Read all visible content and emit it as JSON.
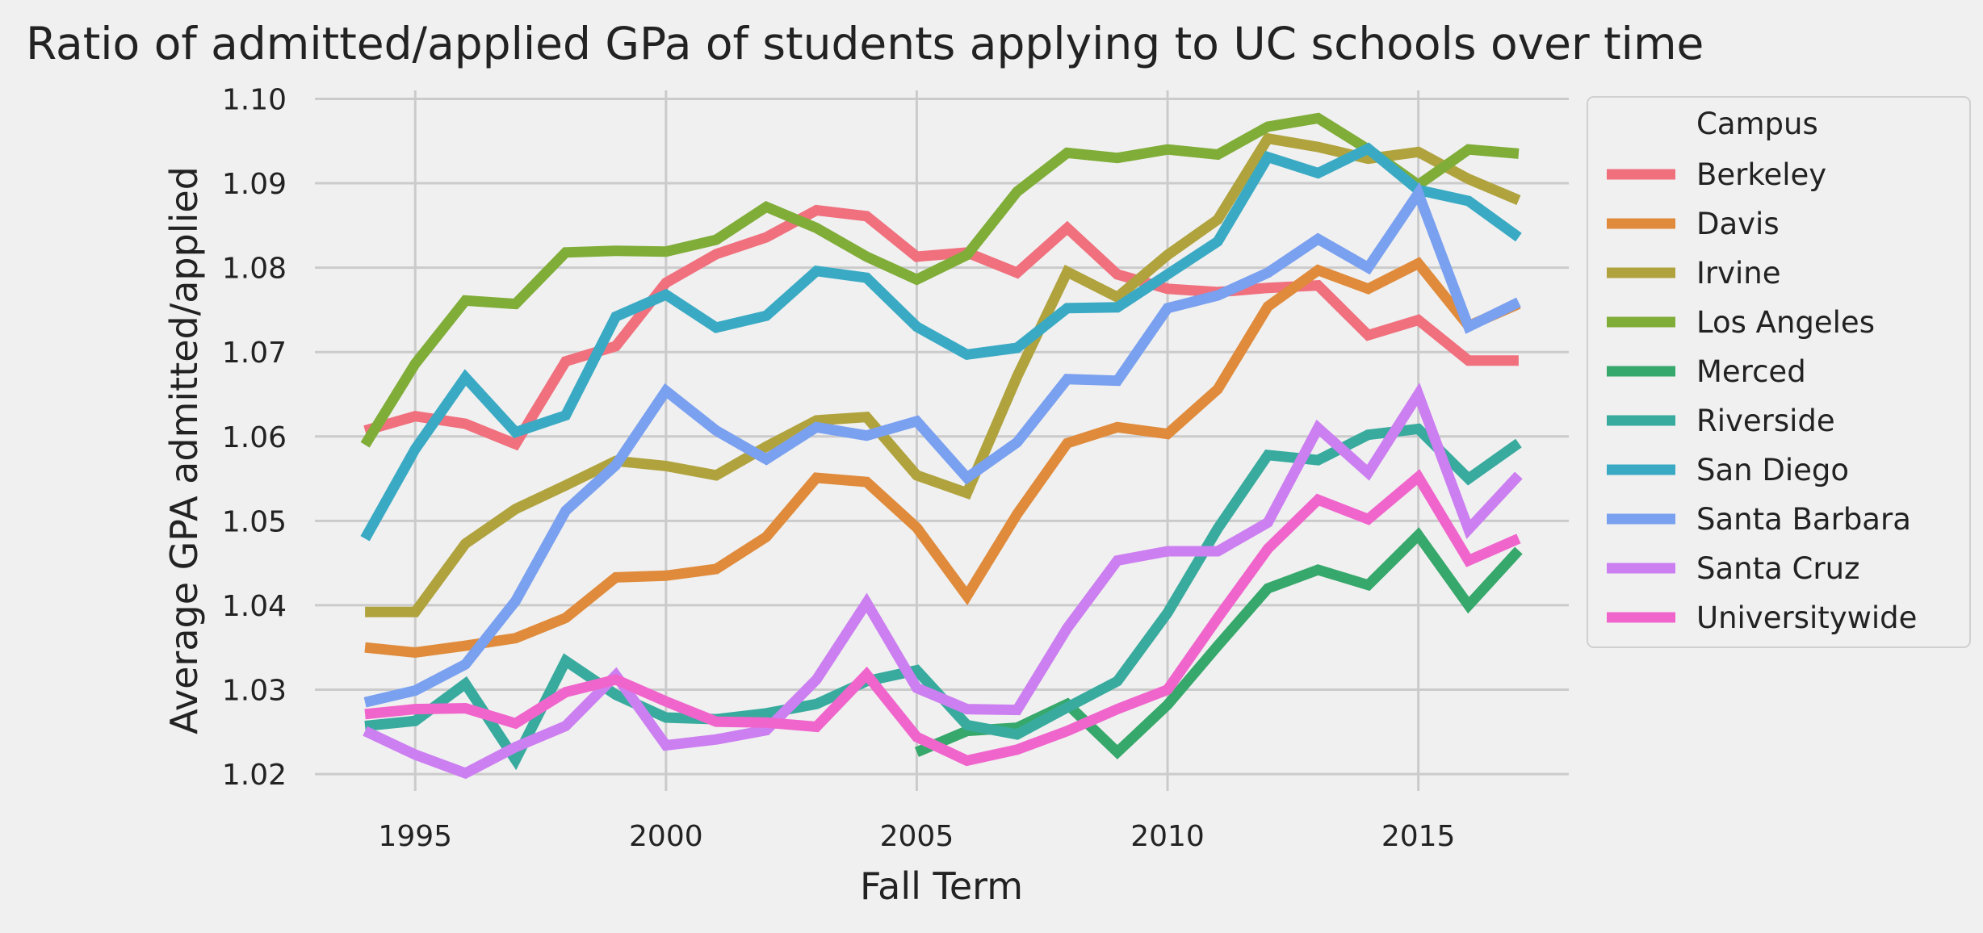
{
  "chart_data": {
    "type": "line",
    "title": "Ratio of admitted/applied GPa of students applying to UC schools over time",
    "xlabel": "Fall Term",
    "ylabel": "Average GPA admitted/applied",
    "xlim": [
      1993,
      2018
    ],
    "ylim": [
      1.018,
      1.101
    ],
    "xticks": [
      1995,
      2000,
      2005,
      2010,
      2015
    ],
    "yticks": [
      1.02,
      1.03,
      1.04,
      1.05,
      1.06,
      1.07,
      1.08,
      1.09,
      1.1
    ],
    "ytick_labels": [
      "1.02",
      "1.03",
      "1.04",
      "1.05",
      "1.06",
      "1.07",
      "1.08",
      "1.09",
      "1.10"
    ],
    "grid": true,
    "legend": {
      "title": "Campus",
      "placement": "outside-right"
    },
    "x": [
      1994,
      1995,
      1996,
      1997,
      1998,
      1999,
      2000,
      2001,
      2002,
      2003,
      2004,
      2005,
      2006,
      2007,
      2008,
      2009,
      2010,
      2011,
      2012,
      2013,
      2014,
      2015,
      2016,
      2017
    ],
    "series": [
      {
        "name": "Berkeley",
        "color": "#f0707e",
        "values": [
          1.0607,
          1.0624,
          1.0615,
          1.0591,
          1.0689,
          1.0707,
          1.0782,
          1.0816,
          1.0836,
          1.0868,
          1.0861,
          1.0813,
          1.0818,
          1.0794,
          1.0847,
          1.0792,
          1.0775,
          1.0771,
          1.0776,
          1.0779,
          1.072,
          1.0738,
          1.069,
          1.069
        ]
      },
      {
        "name": "Davis",
        "color": "#e08b3b",
        "values": [
          1.035,
          1.0344,
          1.0352,
          1.0361,
          1.0385,
          1.0433,
          1.0435,
          1.0443,
          1.0481,
          1.0551,
          1.0546,
          1.0492,
          1.0411,
          1.0508,
          1.0592,
          1.0611,
          1.0603,
          1.0656,
          1.0754,
          1.0797,
          1.0775,
          1.0805,
          1.0731,
          1.0757
        ]
      },
      {
        "name": "Irvine",
        "color": "#b0a33e",
        "values": [
          1.0392,
          1.0392,
          1.0473,
          1.0514,
          1.0542,
          1.0571,
          1.0565,
          1.0554,
          1.0588,
          1.0619,
          1.0623,
          1.0554,
          1.0533,
          1.0671,
          1.0795,
          1.0765,
          1.0815,
          1.0857,
          1.0953,
          1.0943,
          1.0929,
          1.0937,
          1.0905,
          1.088
        ]
      },
      {
        "name": "Los Angeles",
        "color": "#80ad38",
        "values": [
          1.059,
          1.0686,
          1.0761,
          1.0757,
          1.0818,
          1.082,
          1.0819,
          1.0833,
          1.0872,
          1.0847,
          1.0813,
          1.0786,
          1.0815,
          1.089,
          1.0936,
          1.093,
          1.094,
          1.0934,
          1.0967,
          1.0977,
          1.094,
          1.0898,
          1.094,
          1.0935
        ]
      },
      {
        "name": "Merced",
        "color": "#37a86b",
        "values": [
          null,
          null,
          null,
          null,
          null,
          null,
          null,
          null,
          null,
          null,
          null,
          1.0226,
          1.0251,
          1.0255,
          1.0283,
          1.0226,
          1.0282,
          1.0352,
          1.042,
          1.0442,
          1.0424,
          1.0483,
          1.04,
          1.0465
        ]
      },
      {
        "name": "Riverside",
        "color": "#38ab9e",
        "values": [
          1.0257,
          1.0263,
          1.0307,
          1.0217,
          1.0334,
          1.0294,
          1.0267,
          1.0265,
          1.0272,
          1.0283,
          1.031,
          1.0323,
          1.0258,
          1.0247,
          1.0279,
          1.031,
          1.0391,
          1.0491,
          1.0578,
          1.0572,
          1.0602,
          1.0609,
          1.055,
          1.0592
        ]
      },
      {
        "name": "San Diego",
        "color": "#3aaac4",
        "values": [
          1.0479,
          1.0585,
          1.067,
          1.0605,
          1.0625,
          1.0742,
          1.0768,
          1.0729,
          1.0743,
          1.0796,
          1.0788,
          1.073,
          1.0697,
          1.0705,
          1.0752,
          1.0753,
          1.0792,
          1.0831,
          1.0931,
          1.0912,
          1.0941,
          1.0892,
          1.0879,
          1.0836
        ]
      },
      {
        "name": "Santa Barbara",
        "color": "#7aa0f0",
        "values": [
          1.0285,
          1.0299,
          1.033,
          1.0405,
          1.0512,
          1.0566,
          1.0654,
          1.0607,
          1.0573,
          1.0611,
          1.0601,
          1.0618,
          1.0551,
          1.0593,
          1.0668,
          1.0666,
          1.0752,
          1.0767,
          1.0794,
          1.0834,
          1.08,
          1.0888,
          1.073,
          1.0759
        ]
      },
      {
        "name": "Santa Cruz",
        "color": "#cc7ff0",
        "values": [
          1.0251,
          1.0223,
          1.0201,
          1.0232,
          1.0257,
          1.0317,
          1.0234,
          1.0241,
          1.0252,
          1.0312,
          1.0403,
          1.0302,
          1.0277,
          1.0276,
          1.0373,
          1.0453,
          1.0464,
          1.0464,
          1.0498,
          1.061,
          1.0557,
          1.065,
          1.049,
          1.0554
        ]
      },
      {
        "name": "Universitywide",
        "color": "#f065cc",
        "values": [
          1.0271,
          1.0277,
          1.0278,
          1.026,
          1.0297,
          1.0312,
          1.0286,
          1.0262,
          1.0261,
          1.0256,
          1.0318,
          1.0244,
          1.0216,
          1.0229,
          1.0251,
          1.0277,
          1.03,
          1.0385,
          1.0467,
          1.0525,
          1.0502,
          1.0552,
          1.0453,
          1.0479
        ]
      }
    ]
  }
}
